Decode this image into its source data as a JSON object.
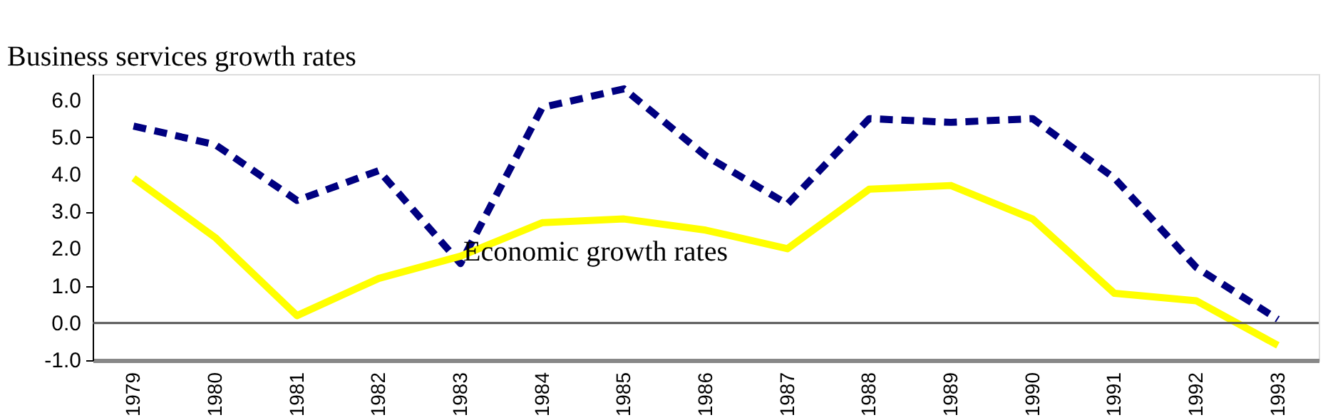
{
  "chart_data": {
    "type": "line",
    "categories": [
      "1979",
      "1980",
      "1981",
      "1982",
      "1983",
      "1984",
      "1985",
      "1986",
      "1987",
      "1988",
      "1989",
      "1990",
      "1991",
      "1992",
      "1993"
    ],
    "series": [
      {
        "name": "Business services growth rates",
        "color": "#000080",
        "line_style": "dashed",
        "values": [
          5.3,
          4.8,
          3.3,
          4.1,
          1.6,
          5.8,
          6.3,
          4.5,
          3.2,
          5.5,
          5.4,
          5.5,
          3.9,
          1.5,
          0.1
        ]
      },
      {
        "name": "Economic growth rates",
        "color": "#ffff00",
        "line_style": "solid",
        "values": [
          3.9,
          2.3,
          0.2,
          1.2,
          1.8,
          2.7,
          2.8,
          2.5,
          2.0,
          3.6,
          3.7,
          2.8,
          0.8,
          0.6,
          -0.6
        ]
      }
    ],
    "ylim": [
      -1,
      6.7
    ],
    "yticks": [
      {
        "value": -1,
        "label": "-1.0"
      },
      {
        "value": 0,
        "label": "0.0"
      },
      {
        "value": 1,
        "label": "1.0"
      },
      {
        "value": 2,
        "label": "2.0"
      },
      {
        "value": 3,
        "label": "3.0"
      },
      {
        "value": 4,
        "label": "4.0"
      },
      {
        "value": 5,
        "label": "5.0"
      },
      {
        "value": 6,
        "label": "6.0"
      }
    ],
    "ref_lines": [
      {
        "axis": "y",
        "value": 0,
        "color": "#555555"
      }
    ],
    "grid": false,
    "marker": "none"
  }
}
